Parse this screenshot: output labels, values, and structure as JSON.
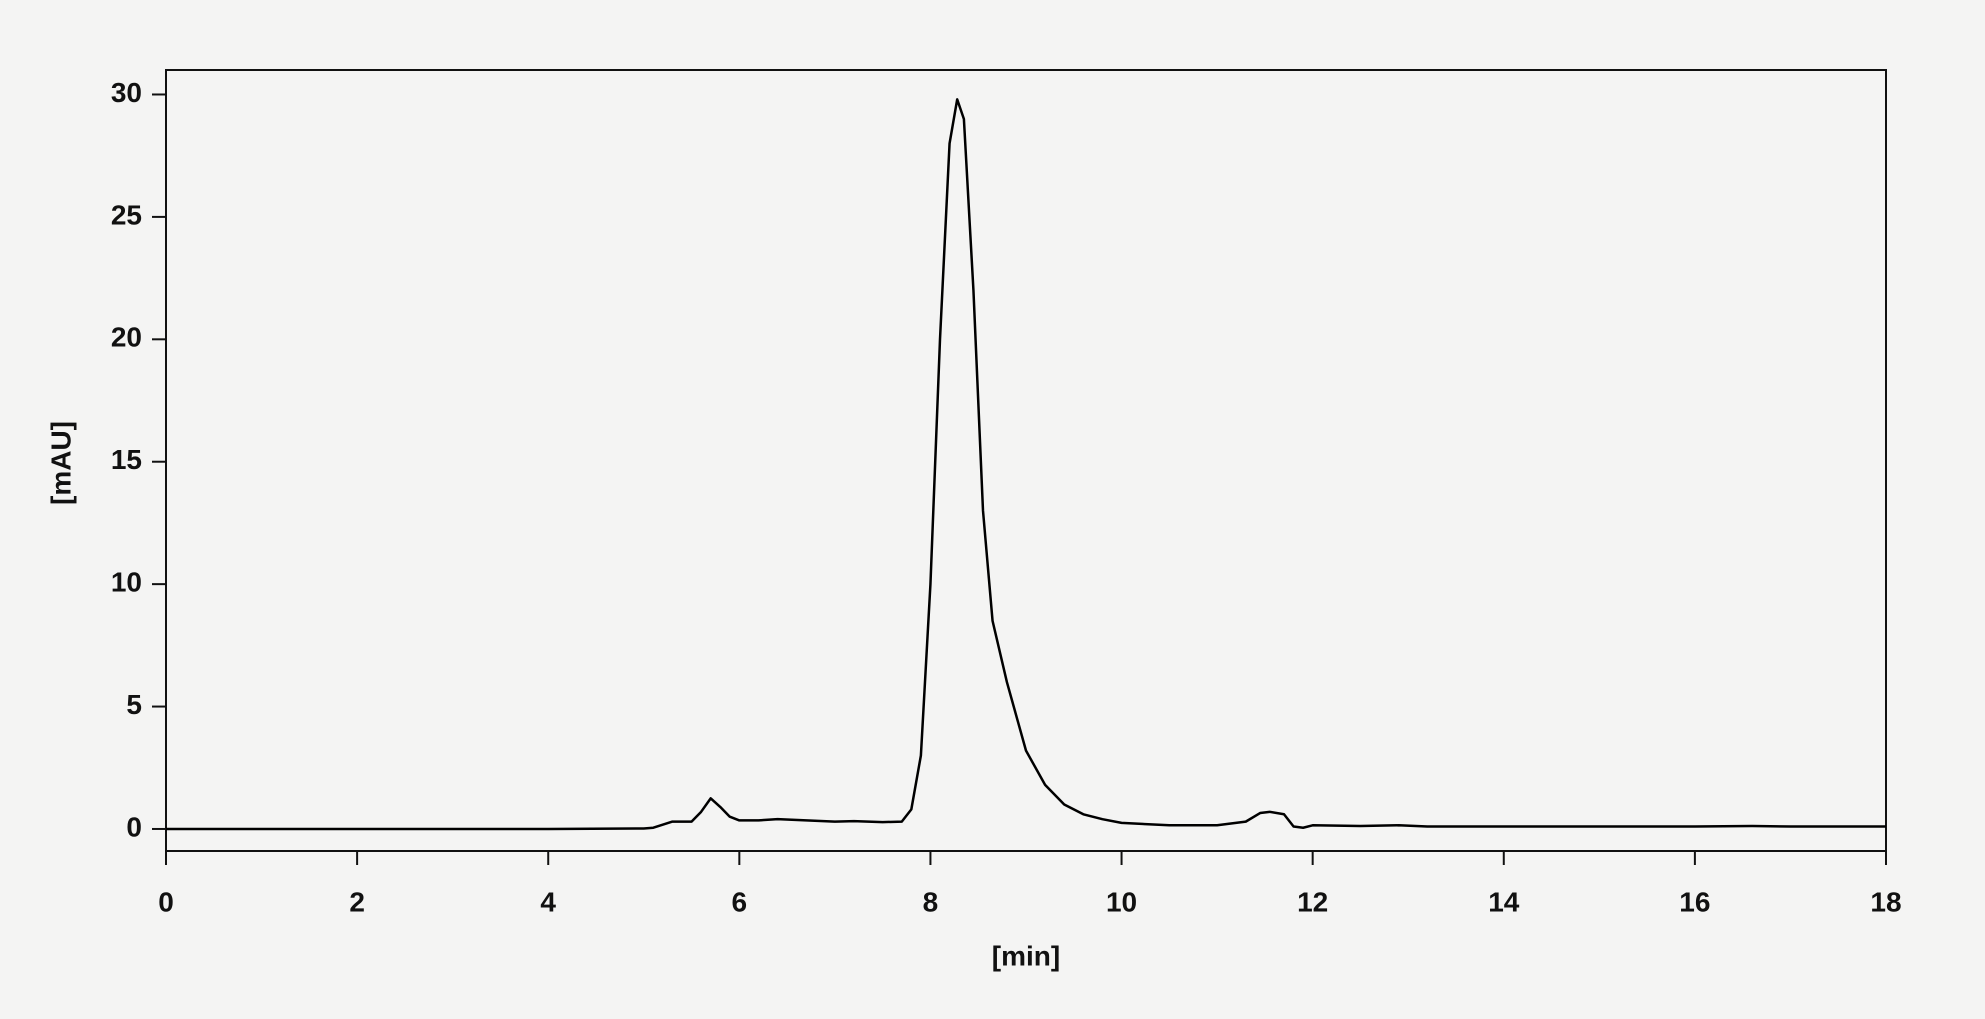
{
  "chart_data": {
    "type": "line",
    "xlabel": "[min]",
    "ylabel": "[mAU]",
    "color": "#000000",
    "x": [
      0,
      1,
      2,
      3,
      4,
      5,
      5.1,
      5.3,
      5.5,
      5.6,
      5.7,
      5.8,
      5.9,
      6,
      6.2,
      6.4,
      6.7,
      7,
      7.2,
      7.5,
      7.7,
      7.8,
      7.9,
      8,
      8.1,
      8.2,
      8.28,
      8.35,
      8.45,
      8.55,
      8.65,
      8.8,
      9,
      9.2,
      9.4,
      9.6,
      9.8,
      10,
      10.5,
      11,
      11.3,
      11.45,
      11.55,
      11.7,
      11.8,
      11.9,
      12,
      12.5,
      12.9,
      13.2,
      14,
      16,
      16.6,
      17,
      18
    ],
    "values": [
      0,
      0,
      0,
      0,
      0,
      0.02,
      0.05,
      0.3,
      0.3,
      0.7,
      1.25,
      0.9,
      0.5,
      0.35,
      0.35,
      0.4,
      0.35,
      0.3,
      0.32,
      0.28,
      0.3,
      0.8,
      3,
      10,
      20,
      28,
      29.8,
      29,
      22,
      13,
      8.5,
      6,
      3.2,
      1.8,
      1,
      0.6,
      0.4,
      0.25,
      0.15,
      0.15,
      0.3,
      0.65,
      0.7,
      0.6,
      0.1,
      0.05,
      0.15,
      0.12,
      0.15,
      0.1,
      0.1,
      0.1,
      0.12,
      0.1,
      0.1
    ],
    "xlim": [
      0,
      18
    ],
    "xticks": [
      0,
      2,
      4,
      6,
      8,
      10,
      12,
      14,
      16,
      18
    ],
    "ylim": [
      -0.9,
      31
    ],
    "yticks": [
      0,
      5,
      10,
      15,
      20,
      25,
      30
    ]
  }
}
